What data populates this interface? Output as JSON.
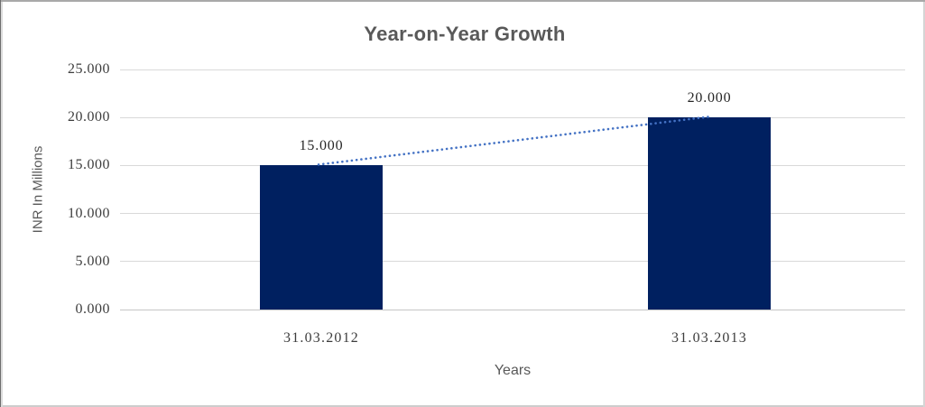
{
  "chart_data": {
    "type": "bar",
    "title": "Year-on-Year Growth",
    "xlabel": "Years",
    "ylabel": "INR In Millions",
    "categories": [
      "31.03.2012",
      "31.03.2013"
    ],
    "values": [
      15,
      20
    ],
    "data_labels": [
      "15.000",
      "20.000"
    ],
    "yticks": [
      {
        "value": 0,
        "label": "0.000"
      },
      {
        "value": 5,
        "label": "5.000"
      },
      {
        "value": 10,
        "label": "10.000"
      },
      {
        "value": 15,
        "label": "15.000"
      },
      {
        "value": 20,
        "label": "20.000"
      },
      {
        "value": 25,
        "label": "25.000"
      }
    ],
    "ylim": [
      0,
      25
    ],
    "grid": true,
    "legend": false,
    "bar_color": "#002060",
    "gridline_color": "#D9D9D9",
    "axis_line_color": "#C6C6C6",
    "trendline": {
      "type": "linear",
      "style": "dotted",
      "color": "#4472C4"
    }
  }
}
